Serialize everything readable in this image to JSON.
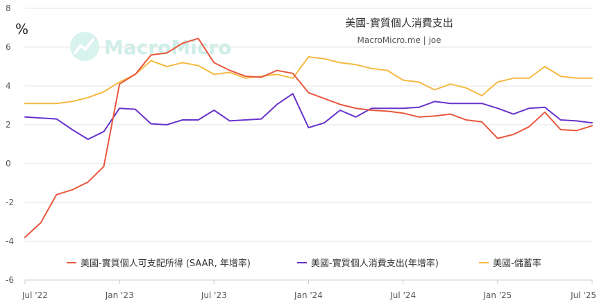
{
  "chart_data": {
    "type": "line",
    "title": "美國-實質個人消費支出",
    "subtitle": "MacroMicro.me | joe",
    "watermark": "MacroMicro",
    "y_unit": "%",
    "ylim": [
      -6,
      8
    ],
    "y_ticks": [
      8,
      6,
      4,
      2,
      0,
      -2,
      -4,
      -6
    ],
    "grid": true,
    "legend_position": "bottom",
    "x_tick_labels": [
      "Jul '22",
      "Jan '23",
      "Jul '23",
      "Jan '24",
      "Jul '24",
      "Jan '25",
      "Jul '25"
    ],
    "x": [
      "2022-07",
      "2022-08",
      "2022-09",
      "2022-10",
      "2022-11",
      "2022-12",
      "2023-01",
      "2023-02",
      "2023-03",
      "2023-04",
      "2023-05",
      "2023-06",
      "2023-07",
      "2023-08",
      "2023-09",
      "2023-10",
      "2023-11",
      "2023-12",
      "2024-01",
      "2024-02",
      "2024-03",
      "2024-04",
      "2024-05",
      "2024-06",
      "2024-07",
      "2024-08",
      "2024-09",
      "2024-10",
      "2024-11",
      "2024-12",
      "2025-01",
      "2025-02",
      "2025-03",
      "2025-04",
      "2025-05",
      "2025-06",
      "2025-07"
    ],
    "series": [
      {
        "name": "美國-實質個人可支配所得 (SAAR, 年增率)",
        "color": "#e8573e",
        "values": [
          -3.8,
          -3.05,
          -1.6,
          -1.35,
          -0.95,
          -0.15,
          4.1,
          4.6,
          5.6,
          5.7,
          6.2,
          6.45,
          5.2,
          4.8,
          4.5,
          4.45,
          4.8,
          4.65,
          3.65,
          3.35,
          3.05,
          2.85,
          2.75,
          2.7,
          2.6,
          2.4,
          2.45,
          2.55,
          2.25,
          2.15,
          1.3,
          1.5,
          1.9,
          2.65,
          1.75,
          1.7,
          1.95
        ]
      },
      {
        "name": "美國-實質個人消費支出(年增率)",
        "color": "#6633cc",
        "values": [
          2.4,
          2.35,
          2.3,
          1.75,
          1.25,
          1.65,
          2.85,
          2.8,
          2.05,
          2.0,
          2.25,
          2.25,
          2.75,
          2.2,
          2.25,
          2.3,
          3.05,
          3.6,
          1.85,
          2.1,
          2.75,
          2.4,
          2.85,
          2.85,
          2.85,
          2.9,
          3.2,
          3.1,
          3.1,
          3.1,
          2.85,
          2.55,
          2.85,
          2.9,
          2.25,
          2.2,
          2.1
        ]
      },
      {
        "name": "美國-儲蓄率",
        "color": "#f5b942",
        "values": [
          3.1,
          3.1,
          3.1,
          3.2,
          3.4,
          3.7,
          4.2,
          4.6,
          5.3,
          5.0,
          5.2,
          5.05,
          4.6,
          4.7,
          4.4,
          4.5,
          4.6,
          4.4,
          5.5,
          5.4,
          5.2,
          5.1,
          4.9,
          4.8,
          4.3,
          4.2,
          3.8,
          4.1,
          3.9,
          3.5,
          4.2,
          4.4,
          4.4,
          5.0,
          4.5,
          4.4,
          4.4
        ]
      }
    ]
  }
}
